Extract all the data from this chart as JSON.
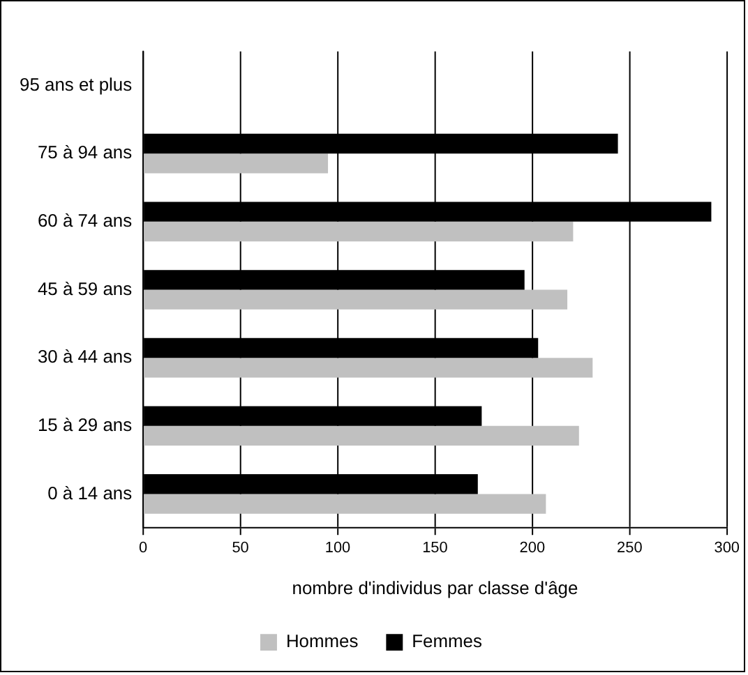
{
  "chart_data": {
    "type": "bar",
    "orientation": "horizontal",
    "xlabel": "nombre d'individus par classe d'âge",
    "categories": [
      "95 ans et plus",
      "75 à 94 ans",
      "60 à 74 ans",
      "45 à 59 ans",
      "30 à 44 ans",
      "15 à 29 ans",
      "0 à 14 ans"
    ],
    "series": [
      {
        "name": "Hommes",
        "color": "#c0c0c0",
        "values": [
          0,
          95,
          221,
          218,
          231,
          224,
          207
        ]
      },
      {
        "name": "Femmes",
        "color": "#000000",
        "values": [
          0,
          244,
          292,
          196,
          203,
          174,
          172
        ]
      }
    ],
    "xlim": [
      0,
      300
    ],
    "xticks": [
      0,
      50,
      100,
      150,
      200,
      250,
      300
    ],
    "grid": "x",
    "legend": "bottom"
  }
}
